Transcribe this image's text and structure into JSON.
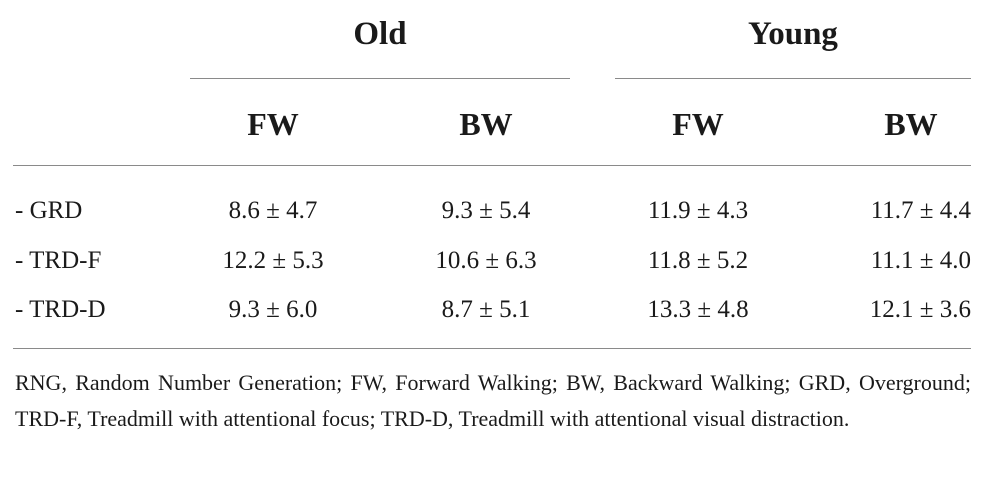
{
  "groups": {
    "old": "Old",
    "young": "Young"
  },
  "subheaders": {
    "old_fw": "FW",
    "old_bw": "BW",
    "young_fw": "FW",
    "young_bw": "BW"
  },
  "rows": [
    {
      "label": "- GRD",
      "old_fw": "8.6 ± 4.7",
      "old_bw": "9.3 ± 5.4",
      "young_fw": "11.9 ± 4.3",
      "young_bw": "11.7 ± 4.4"
    },
    {
      "label": "- TRD-F",
      "old_fw": "12.2 ± 5.3",
      "old_bw": "10.6 ± 6.3",
      "young_fw": "11.8 ± 5.2",
      "young_bw": "11.1 ± 4.0"
    },
    {
      "label": "- TRD-D",
      "old_fw": "9.3 ± 6.0",
      "old_bw": "8.7 ± 5.1",
      "young_fw": "13.3 ± 4.8",
      "young_bw": "12.1 ± 3.6"
    }
  ],
  "footnote": "RNG, Random Number Generation; FW, Forward Walking; BW, Backward Walking; GRD, Overground; TRD-F, Treadmill with attentional focus; TRD-D, Treadmill with attentional visual distraction."
}
